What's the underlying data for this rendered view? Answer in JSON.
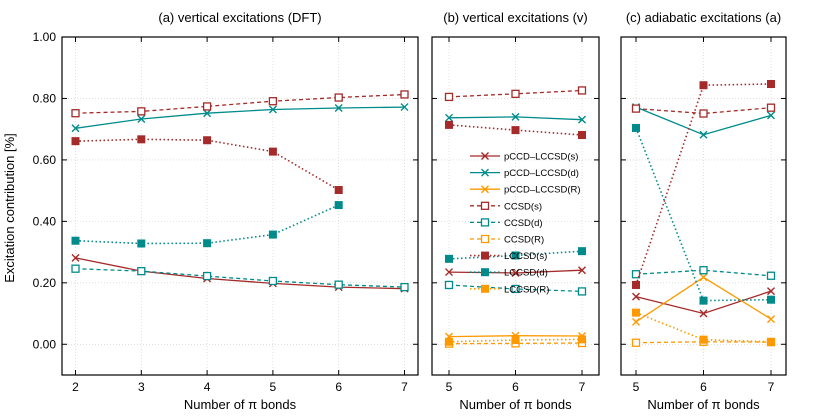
{
  "ylabel": "Excitation contribution [%]",
  "styles": {
    "pCCD–LCCSD(s)": {
      "color": "#a52a2a",
      "marker": "x",
      "dash": "solid"
    },
    "pCCD–LCCSD(d)": {
      "color": "#008b8b",
      "marker": "x",
      "dash": "solid"
    },
    "pCCD–LCCSD(R)": {
      "color": "#ff9900",
      "marker": "x",
      "dash": "solid"
    },
    "CCSD(s)": {
      "color": "#a52a2a",
      "marker": "square-open",
      "dash": "dashed"
    },
    "CCSD(d)": {
      "color": "#008b8b",
      "marker": "square-open",
      "dash": "dashed"
    },
    "CCSD(R)": {
      "color": "#ff9900",
      "marker": "square-open",
      "dash": "dashed"
    },
    "LCCSD(s)": {
      "color": "#a52a2a",
      "marker": "square-filled",
      "dash": "dotted"
    },
    "LCCSD(d)": {
      "color": "#008b8b",
      "marker": "square-filled",
      "dash": "dotted"
    },
    "LCCSD(R)": {
      "color": "#ff9900",
      "marker": "square-filled",
      "dash": "dotted"
    }
  },
  "chart_data": [
    {
      "type": "line",
      "title": "(a) vertical excitations (DFT)",
      "xlabel": "Number of π bonds",
      "x": [
        2,
        3,
        4,
        5,
        6,
        7
      ],
      "ylim": [
        -0.1,
        1.0
      ],
      "yticks": [
        "0.00",
        "0.20",
        "0.40",
        "0.60",
        "0.80",
        "1.00"
      ],
      "grid": true,
      "series": [
        {
          "name": "pCCD–LCCSD(s)",
          "values": [
            0.281,
            0.238,
            0.214,
            0.198,
            0.186,
            0.181
          ]
        },
        {
          "name": "pCCD–LCCSD(d)",
          "values": [
            0.703,
            0.733,
            0.752,
            0.764,
            0.769,
            0.772
          ]
        },
        {
          "name": "CCSD(s)",
          "values": [
            0.752,
            0.758,
            0.774,
            0.791,
            0.803,
            0.813
          ]
        },
        {
          "name": "CCSD(d)",
          "values": [
            0.246,
            0.238,
            0.222,
            0.206,
            0.194,
            0.186
          ]
        },
        {
          "name": "LCCSD(s)",
          "values": [
            0.661,
            0.667,
            0.664,
            0.627,
            0.502,
            null
          ]
        },
        {
          "name": "LCCSD(d)",
          "values": [
            0.337,
            0.328,
            0.329,
            0.357,
            0.453,
            null
          ]
        }
      ]
    },
    {
      "type": "line",
      "title": "(b) vertical excitations (v)",
      "xlabel": "Number of π bonds",
      "x": [
        5,
        6,
        7
      ],
      "ylim": [
        -0.1,
        1.0
      ],
      "grid": true,
      "legend": "center",
      "legend_entries": [
        "pCCD–LCCSD(s)",
        "pCCD–LCCSD(d)",
        "pCCD–LCCSD(R)",
        "CCSD(s)",
        "CCSD(d)",
        "CCSD(R)",
        "LCCSD(s)",
        "LCCSD(d)",
        "LCCSD(R)"
      ],
      "series": [
        {
          "name": "pCCD–LCCSD(s)",
          "values": [
            0.235,
            0.232,
            0.241
          ]
        },
        {
          "name": "pCCD–LCCSD(d)",
          "values": [
            0.737,
            0.74,
            0.731
          ]
        },
        {
          "name": "pCCD–LCCSD(R)",
          "values": [
            0.025,
            0.028,
            0.027
          ]
        },
        {
          "name": "CCSD(s)",
          "values": [
            0.805,
            0.815,
            0.826
          ]
        },
        {
          "name": "CCSD(d)",
          "values": [
            0.193,
            0.18,
            0.172
          ]
        },
        {
          "name": "CCSD(R)",
          "values": [
            0.002,
            0.003,
            0.004
          ]
        },
        {
          "name": "LCCSD(s)",
          "values": [
            0.714,
            0.697,
            0.681
          ]
        },
        {
          "name": "LCCSD(d)",
          "values": [
            0.278,
            0.289,
            0.303
          ]
        },
        {
          "name": "LCCSD(R)",
          "values": [
            0.008,
            0.014,
            0.016
          ]
        }
      ]
    },
    {
      "type": "line",
      "title": "(c) adiabatic excitations (a)",
      "xlabel": "Number of π bonds",
      "x": [
        5,
        6,
        7
      ],
      "ylim": [
        -0.1,
        1.0
      ],
      "grid": true,
      "series": [
        {
          "name": "pCCD–LCCSD(s)",
          "values": [
            0.155,
            0.1,
            0.173
          ]
        },
        {
          "name": "pCCD–LCCSD(d)",
          "values": [
            0.772,
            0.682,
            0.745
          ]
        },
        {
          "name": "pCCD–LCCSD(R)",
          "values": [
            0.073,
            0.218,
            0.082
          ]
        },
        {
          "name": "CCSD(s)",
          "values": [
            0.767,
            0.751,
            0.77
          ]
        },
        {
          "name": "CCSD(d)",
          "values": [
            0.228,
            0.241,
            0.223
          ]
        },
        {
          "name": "CCSD(R)",
          "values": [
            0.005,
            0.008,
            0.007
          ]
        },
        {
          "name": "LCCSD(s)",
          "values": [
            0.193,
            0.843,
            0.847
          ]
        },
        {
          "name": "LCCSD(d)",
          "values": [
            0.704,
            0.142,
            0.145
          ]
        },
        {
          "name": "LCCSD(R)",
          "values": [
            0.103,
            0.015,
            0.008
          ]
        }
      ]
    }
  ]
}
